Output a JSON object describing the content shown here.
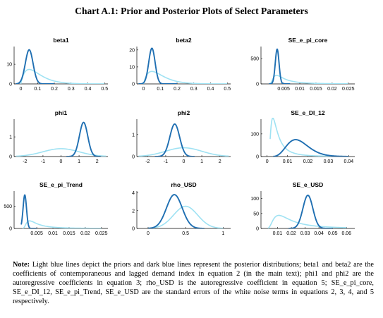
{
  "title": "Chart A.1: Prior and Posterior Plots of Select Parameters",
  "colors": {
    "prior": "#9fe2f3",
    "posterior": "#1f6fb2",
    "axis": "#000000"
  },
  "note": {
    "label": "Note:",
    "text": "Light blue lines depict the priors and dark blue lines represent the posterior distributions; beta1 and beta2 are the coefficients of contemporaneous and lagged demand index in equation 2 (in the main text); phi1 and phi2 are the autoregressive coefficients in equation 3; rho_USD is the autoregressive coefficient in equation 5; SE_e_pi_core, SE_e_DI_12, SE_e_pi_Trend, SE_e_USD are the standard errors of the white noise terms in equations 2, 3, 4, and 5 respectively."
  },
  "chart_data": [
    {
      "type": "line",
      "title": "beta1",
      "xlim": [
        -0.04,
        0.52
      ],
      "ylim": [
        0,
        19
      ],
      "xticks": [
        0,
        0.1,
        0.2,
        0.3,
        0.4,
        0.5
      ],
      "xticklabels": [
        "0",
        "0.1",
        "0.2",
        "0.3",
        "0.4",
        "0.5"
      ],
      "yticks": [
        0,
        10
      ],
      "yticklabels": [
        "0",
        "10"
      ],
      "series": [
        {
          "role": "prior",
          "dist": "gamma",
          "k": 2,
          "theta": 0.05,
          "xrange": [
            0,
            0.5
          ]
        },
        {
          "role": "posterior",
          "dist": "normal",
          "mu": 0.05,
          "sd": 0.023,
          "xrange": [
            -0.03,
            0.2
          ]
        }
      ]
    },
    {
      "type": "line",
      "title": "beta2",
      "xlim": [
        -0.04,
        0.52
      ],
      "ylim": [
        0,
        22
      ],
      "xticks": [
        0,
        0.1,
        0.2,
        0.3,
        0.4,
        0.5
      ],
      "xticklabels": [
        "0",
        "0.1",
        "0.2",
        "0.3",
        "0.4",
        "0.5"
      ],
      "yticks": [
        0,
        10,
        20
      ],
      "yticklabels": [
        "0",
        "10",
        "20"
      ],
      "series": [
        {
          "role": "prior",
          "dist": "gamma",
          "k": 2,
          "theta": 0.05,
          "xrange": [
            0,
            0.5
          ]
        },
        {
          "role": "posterior",
          "dist": "normal",
          "mu": 0.05,
          "sd": 0.019,
          "xrange": [
            -0.03,
            0.2
          ]
        }
      ]
    },
    {
      "type": "line",
      "title": "SE_e_pi_core",
      "xlim": [
        -0.002,
        0.027
      ],
      "ylim": [
        0,
        740
      ],
      "xticks": [
        0.005,
        0.01,
        0.015,
        0.02,
        0.025
      ],
      "xticklabels": [
        "0.005",
        "0.01",
        "0.015",
        "0.02",
        "0.025"
      ],
      "yticks": [
        0,
        500
      ],
      "yticklabels": [
        "0",
        "500"
      ],
      "series": [
        {
          "role": "prior",
          "dist": "invgamma",
          "a": 2.2,
          "b": 0.009,
          "xrange": [
            0.0005,
            0.025
          ]
        },
        {
          "role": "posterior",
          "dist": "normal",
          "mu": 0.003,
          "sd": 0.00058,
          "xrange": [
            0.0005,
            0.007
          ]
        }
      ]
    },
    {
      "type": "line",
      "title": "phi1",
      "xlim": [
        -2.6,
        2.6
      ],
      "ylim": [
        0,
        1.9
      ],
      "xticks": [
        -2,
        -1,
        0,
        1,
        2
      ],
      "xticklabels": [
        "-2",
        "-1",
        "0",
        "1",
        "2"
      ],
      "yticks": [
        0,
        1
      ],
      "yticklabels": [
        "0",
        "1"
      ],
      "series": [
        {
          "role": "prior",
          "dist": "normal",
          "mu": 0,
          "sd": 1,
          "xrange": [
            -2.5,
            2.5
          ]
        },
        {
          "role": "posterior",
          "dist": "normal",
          "mu": 1.25,
          "sd": 0.23,
          "xrange": [
            0.3,
            2.2
          ]
        }
      ]
    },
    {
      "type": "line",
      "title": "phi2",
      "xlim": [
        -2.6,
        2.6
      ],
      "ylim": [
        0,
        1.7
      ],
      "xticks": [
        -2,
        -1,
        0,
        1,
        2
      ],
      "xticklabels": [
        "-2",
        "-1",
        "0",
        "1",
        "2"
      ],
      "yticks": [
        0,
        1
      ],
      "yticklabels": [
        "0",
        "1"
      ],
      "series": [
        {
          "role": "prior",
          "dist": "normal",
          "mu": 0,
          "sd": 1,
          "xrange": [
            -2.5,
            2.5
          ]
        },
        {
          "role": "posterior",
          "dist": "normal",
          "mu": -0.5,
          "sd": 0.27,
          "xrange": [
            -1.6,
            0.6
          ]
        }
      ]
    },
    {
      "type": "line",
      "title": "SE_e_DI_12",
      "xlim": [
        -0.003,
        0.043
      ],
      "ylim": [
        0,
        165
      ],
      "xticks": [
        0,
        0.01,
        0.02,
        0.03,
        0.04
      ],
      "xticklabels": [
        "0",
        "0.01",
        "0.02",
        "0.03",
        "0.04"
      ],
      "yticks": [
        0,
        100
      ],
      "yticklabels": [
        "0",
        "100"
      ],
      "series": [
        {
          "role": "prior",
          "dist": "invgamma",
          "a": 2.2,
          "b": 0.009,
          "xrange": [
            0.0015,
            0.04
          ]
        },
        {
          "role": "posterior",
          "dist": "gamma",
          "k": 8,
          "theta": 0.002,
          "xrange": [
            0.003,
            0.04
          ]
        }
      ]
    },
    {
      "type": "line",
      "title": "SE_e_pi_Trend",
      "xlim": [
        -0.002,
        0.027
      ],
      "ylim": [
        0,
        840
      ],
      "xticks": [
        0.005,
        0.01,
        0.015,
        0.02,
        0.025
      ],
      "xticklabels": [
        "0.005",
        "0.01",
        "0.015",
        "0.02",
        "0.025"
      ],
      "yticks": [
        0,
        500
      ],
      "yticklabels": [
        "0",
        "500"
      ],
      "series": [
        {
          "role": "prior",
          "dist": "invgamma",
          "a": 2.2,
          "b": 0.009,
          "xrange": [
            0.0005,
            0.025
          ]
        },
        {
          "role": "posterior",
          "dist": "normal",
          "mu": 0.0013,
          "sd": 0.00053,
          "xrange": [
            0.0002,
            0.005
          ]
        }
      ]
    },
    {
      "type": "line",
      "title": "rho_USD",
      "xlim": [
        -0.15,
        1.1
      ],
      "ylim": [
        0,
        4.2
      ],
      "xticks": [
        0,
        0.5,
        1
      ],
      "xticklabels": [
        "0",
        "0.5",
        "1"
      ],
      "yticks": [
        0,
        2,
        4
      ],
      "yticklabels": [
        "0",
        "2",
        "4"
      ],
      "series": [
        {
          "role": "prior",
          "dist": "normal",
          "mu": 0.5,
          "sd": 0.16,
          "xrange": [
            0,
            1
          ]
        },
        {
          "role": "posterior",
          "dist": "normal",
          "mu": 0.35,
          "sd": 0.105,
          "xrange": [
            0,
            0.75
          ]
        }
      ]
    },
    {
      "type": "line",
      "title": "SE_e_USD",
      "xlim": [
        -0.002,
        0.066
      ],
      "ylim": [
        0,
        125
      ],
      "xticks": [
        0.01,
        0.02,
        0.03,
        0.04,
        0.05,
        0.06
      ],
      "xticklabels": [
        "0.01",
        "0.02",
        "0.03",
        "0.04",
        "0.05",
        "0.06"
      ],
      "yticks": [
        0,
        50,
        100
      ],
      "yticklabels": [
        "0",
        "50",
        "100"
      ],
      "series": [
        {
          "role": "prior",
          "dist": "invgamma",
          "a": 2.2,
          "b": 0.035,
          "xrange": [
            0.003,
            0.06
          ]
        },
        {
          "role": "posterior",
          "dist": "normal",
          "mu": 0.032,
          "sd": 0.0036,
          "xrange": [
            0.018,
            0.05
          ]
        }
      ]
    }
  ]
}
